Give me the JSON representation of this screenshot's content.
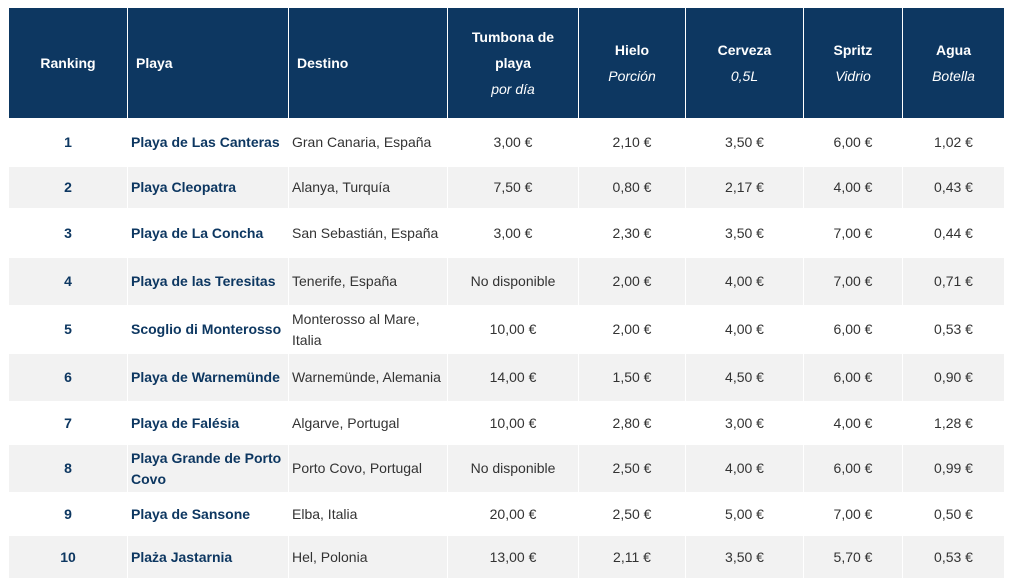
{
  "header": {
    "ranking": "Ranking",
    "playa": "Playa",
    "destino": "Destino",
    "tumbona": "Tumbona de playa",
    "tumbona_sub": "por día",
    "hielo": "Hielo",
    "hielo_sub": "Porción",
    "cerveza": "Cerveza",
    "cerveza_sub": "0,5L",
    "spritz": "Spritz",
    "spritz_sub": "Vidrio",
    "agua": "Agua",
    "agua_sub": "Botella"
  },
  "rows": [
    {
      "ranking": "1",
      "playa": "Playa de Las Canteras",
      "destino": "Gran Canaria, España",
      "tumbona": "3,00 €",
      "hielo": "2,10 €",
      "cerveza": "3,50 €",
      "spritz": "6,00 €",
      "agua": "1,02 €"
    },
    {
      "ranking": "2",
      "playa": "Playa Cleopatra",
      "destino": "Alanya, Turquía",
      "tumbona": "7,50 €",
      "hielo": "0,80 €",
      "cerveza": "2,17 €",
      "spritz": "4,00 €",
      "agua": "0,43 €"
    },
    {
      "ranking": "3",
      "playa": "Playa de La Concha",
      "destino": "San Sebastián, España",
      "tumbona": "3,00 €",
      "hielo": "2,30 €",
      "cerveza": "3,50 €",
      "spritz": "7,00 €",
      "agua": "0,44 €"
    },
    {
      "ranking": "4",
      "playa": "Playa de las Teresitas",
      "destino": "Tenerife, España",
      "tumbona": "No disponible",
      "hielo": "2,00 €",
      "cerveza": "4,00 €",
      "spritz": "7,00 €",
      "agua": "0,71 €"
    },
    {
      "ranking": "5",
      "playa": "Scoglio di Monterosso",
      "destino": "Monterosso al Mare, Italia",
      "tumbona": "10,00 €",
      "hielo": "2,00 €",
      "cerveza": "4,00 €",
      "spritz": "6,00 €",
      "agua": "0,53 €"
    },
    {
      "ranking": "6",
      "playa": "Playa de Warnemünde",
      "destino": "Warnemünde, Alemania",
      "tumbona": "14,00 €",
      "hielo": "1,50 €",
      "cerveza": "4,50 €",
      "spritz": "6,00 €",
      "agua": "0,90 €"
    },
    {
      "ranking": "7",
      "playa": "Playa de Falésia",
      "destino": "Algarve, Portugal",
      "tumbona": "10,00 €",
      "hielo": "2,80 €",
      "cerveza": "3,00 €",
      "spritz": "4,00 €",
      "agua": "1,28 €"
    },
    {
      "ranking": "8",
      "playa": "Playa Grande de Porto Covo",
      "destino": "Porto Covo, Portugal",
      "tumbona": "No disponible",
      "hielo": "2,50 €",
      "cerveza": "4,00 €",
      "spritz": "6,00 €",
      "agua": "0,99 €"
    },
    {
      "ranking": "9",
      "playa": "Playa de Sansone",
      "destino": "Elba, Italia",
      "tumbona": "20,00 €",
      "hielo": "2,50 €",
      "cerveza": "5,00 €",
      "spritz": "7,00 €",
      "agua": "0,50 €"
    },
    {
      "ranking": "10",
      "playa": "Plaża Jastarnia",
      "destino": "Hel, Polonia",
      "tumbona": "13,00 €",
      "hielo": "2,11 €",
      "cerveza": "3,50 €",
      "spritz": "5,70 €",
      "agua": "0,53 €"
    }
  ],
  "colors": {
    "header_bg": "#0d3761",
    "header_text": "#ffffff",
    "row_alt": "#f2f2f2",
    "accent_text": "#0d3761"
  }
}
